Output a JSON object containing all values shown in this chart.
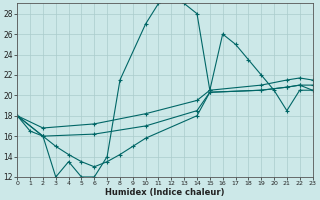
{
  "xlabel": "Humidex (Indice chaleur)",
  "bg_color": "#cce8e8",
  "grid_color": "#aacccc",
  "line_color": "#006666",
  "xmin": 0,
  "xmax": 23,
  "ymin": 12,
  "ymax": 29,
  "yticks": [
    12,
    14,
    16,
    18,
    20,
    22,
    24,
    26,
    28
  ],
  "xticks": [
    0,
    1,
    2,
    3,
    4,
    5,
    6,
    7,
    8,
    9,
    10,
    11,
    12,
    13,
    14,
    15,
    16,
    17,
    18,
    19,
    20,
    21,
    22,
    23
  ],
  "series": [
    {
      "x": [
        0,
        1,
        2,
        3,
        4,
        5,
        6,
        7,
        8,
        10,
        11,
        12,
        13,
        14,
        15,
        16,
        17,
        18,
        19,
        20,
        21,
        22,
        23
      ],
      "y": [
        18,
        16.5,
        16,
        12,
        13.5,
        12,
        12,
        14,
        21.5,
        27,
        29,
        29.5,
        29,
        28,
        20.5,
        26,
        25,
        23.5,
        22,
        20.5,
        18.5,
        20.5,
        20.5
      ]
    },
    {
      "x": [
        0,
        2,
        6,
        10,
        14,
        15,
        19,
        21,
        22,
        23
      ],
      "y": [
        18,
        16.8,
        17.2,
        18.2,
        19.5,
        20.5,
        21.0,
        21.5,
        21.7,
        21.5
      ]
    },
    {
      "x": [
        0,
        2,
        6,
        10,
        14,
        15,
        19,
        21,
        22,
        23
      ],
      "y": [
        18,
        16.0,
        16.2,
        17.0,
        18.5,
        20.3,
        20.5,
        20.8,
        21.0,
        20.5
      ]
    },
    {
      "x": [
        0,
        2,
        3,
        4,
        5,
        6,
        7,
        8,
        9,
        10,
        14,
        15,
        19,
        21,
        22,
        23
      ],
      "y": [
        18,
        16.0,
        15.0,
        14.2,
        13.5,
        13.0,
        13.5,
        14.2,
        15.0,
        15.8,
        18.0,
        20.3,
        20.5,
        20.8,
        21.0,
        21.0
      ]
    }
  ]
}
